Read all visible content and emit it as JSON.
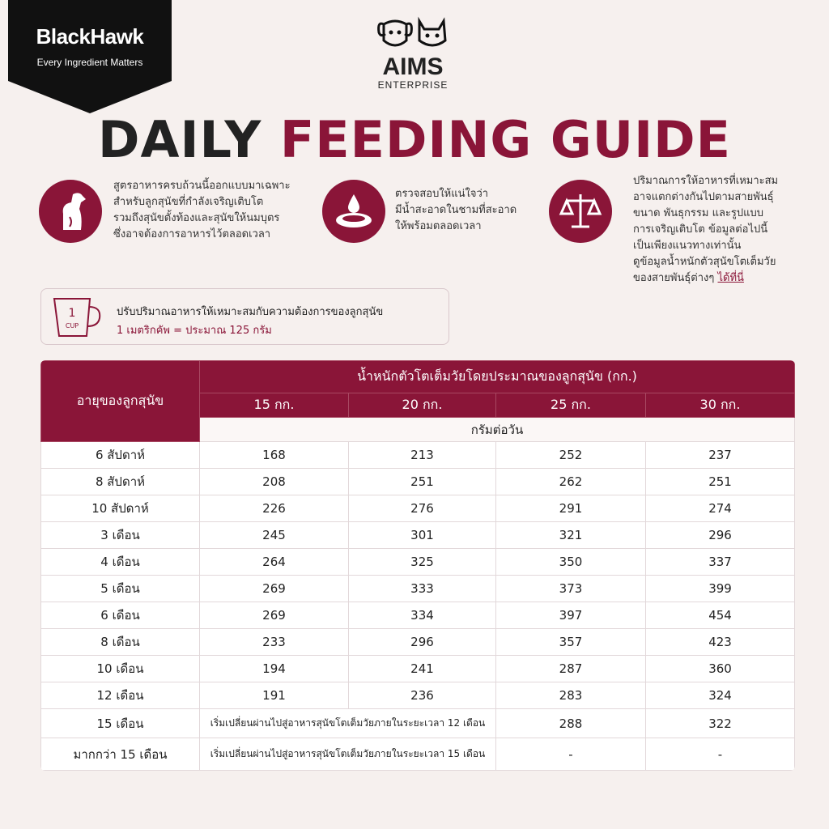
{
  "brand": {
    "name": "BlackHawk",
    "tagline": "Every Ingredient Matters"
  },
  "partner": {
    "name": "AIMS",
    "sub": "ENTERPRISE"
  },
  "title": {
    "part1": "DAILY",
    "part2": "FEEDING GUIDE"
  },
  "info": [
    {
      "lines": [
        "สูตรอาหารครบถ้วนนี้ออกแบบมาเฉพาะ",
        "สำหรับลูกสุนัขที่กำลังเจริญเติบโต",
        "รวมถึงสุนัขตั้งท้องและสุนัขให้นมบุตร",
        "ซึ่งอาจต้องการอาหารไว้ตลอดเวลา"
      ]
    },
    {
      "lines": [
        "ตรวจสอบให้แน่ใจว่า",
        "มีน้ำสะอาดในชามที่สะอาด",
        "ให้พร้อมตลอดเวลา"
      ]
    },
    {
      "lines": [
        "ปริมาณการให้อาหารที่เหมาะสม",
        "อาจแตกต่างกันไปตามสายพันธุ์",
        "ขนาด พันธุกรรม และรูปแบบ",
        "การเจริญเติบโต ข้อมูลต่อไปนี้",
        "เป็นเพียงแนวทางเท่านั้น",
        "ดูข้อมูลน้ำหนักตัวสุนัขโตเต็มวัย"
      ],
      "last_line": "ของสายพันธุ์ต่างๆ",
      "link": "ได้ที่นี่"
    }
  ],
  "cup": {
    "icon_number": "1",
    "icon_unit": "CUP",
    "line1": "ปรับปริมาณอาหารให้เหมาะสมกับความต้องการของลูกสุนัข",
    "line2": "1 เมตริกคัพ = ประมาณ 125 กรัม"
  },
  "table": {
    "age_header": "อายุของลูกสุนัข",
    "weight_header": "น้ำหนักตัวโตเต็มวัยโดยประมาณของลูกสุนัข (กก.)",
    "weights": [
      "15 กก.",
      "20 กก.",
      "25 กก.",
      "30 กก."
    ],
    "unit": "กรัมต่อวัน",
    "rows": [
      [
        "6 สัปดาห์",
        168,
        213,
        252,
        237
      ],
      [
        "8 สัปดาห์",
        208,
        251,
        262,
        251
      ],
      [
        "10 สัปดาห์",
        226,
        276,
        291,
        274
      ],
      [
        "3 เดือน",
        245,
        301,
        321,
        296
      ],
      [
        "4 เดือน",
        264,
        325,
        350,
        337
      ],
      [
        "5 เดือน",
        269,
        333,
        373,
        399
      ],
      [
        "6 เดือน",
        269,
        334,
        397,
        454
      ],
      [
        "8 เดือน",
        233,
        296,
        357,
        423
      ],
      [
        "10 เดือน",
        194,
        241,
        287,
        360
      ],
      [
        "12 เดือน",
        191,
        236,
        283,
        324
      ],
      [
        "15 เดือน",
        "เริ่มเปลี่ยนผ่านไปสู่อาหารสุนัขโตเต็มวัยภายในระยะเวลา 12 เดือน",
        288,
        322
      ],
      [
        "มากกว่า 15 เดือน",
        "เริ่มเปลี่ยนผ่านไปสู่อาหารสุนัขโตเต็มวัยภายในระยะเวลา 15 เดือน",
        "-",
        "-"
      ]
    ]
  }
}
